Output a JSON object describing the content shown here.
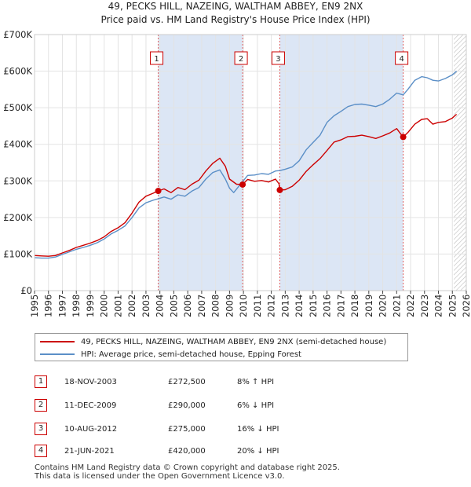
{
  "title_line1": "49, PECKS HILL, NAZEING, WALTHAM ABBEY, EN9 2NX",
  "title_line2": "Price paid vs. HM Land Registry's House Price Index (HPI)",
  "chart_data": {
    "type": "line",
    "ylim": [
      0,
      700000
    ],
    "xlim": [
      1995,
      2026
    ],
    "y_ticks": [
      {
        "value": 0,
        "label": "£0"
      },
      {
        "value": 100000,
        "label": "£100K"
      },
      {
        "value": 200000,
        "label": "£200K"
      },
      {
        "value": 300000,
        "label": "£300K"
      },
      {
        "value": 400000,
        "label": "£400K"
      },
      {
        "value": 500000,
        "label": "£500K"
      },
      {
        "value": 600000,
        "label": "£600K"
      },
      {
        "value": 700000,
        "label": "£700K"
      }
    ],
    "x_ticks": [
      "1995",
      "1996",
      "1997",
      "1998",
      "1999",
      "2000",
      "2001",
      "2002",
      "2003",
      "2004",
      "2005",
      "2006",
      "2007",
      "2008",
      "2009",
      "2010",
      "2011",
      "2012",
      "2013",
      "2014",
      "2015",
      "2016",
      "2017",
      "2018",
      "2019",
      "2020",
      "2021",
      "2022",
      "2023",
      "2024",
      "2025",
      "2026"
    ],
    "shaded_ranges": [
      [
        2003.88,
        2009.94
      ],
      [
        2012.61,
        2021.47
      ]
    ],
    "future_hatch_from": 2025.1,
    "colors": {
      "price_paid": "#cc0000",
      "hpi": "#5b8fc7",
      "shade": "#dce6f5",
      "vline": "#e06060"
    },
    "series": [
      {
        "name": "49, PECKS HILL, NAZEING, WALTHAM ABBEY, EN9 2NX (semi-detached house)",
        "color": "#cc0000",
        "points": [
          [
            1995.0,
            96000
          ],
          [
            1995.5,
            95000
          ],
          [
            1996.0,
            94000
          ],
          [
            1996.5,
            96000
          ],
          [
            1997.0,
            103000
          ],
          [
            1997.5,
            110000
          ],
          [
            1998.0,
            118000
          ],
          [
            1998.5,
            124000
          ],
          [
            1999.0,
            130000
          ],
          [
            1999.5,
            137000
          ],
          [
            2000.0,
            147000
          ],
          [
            2000.5,
            162000
          ],
          [
            2001.0,
            172000
          ],
          [
            2001.5,
            186000
          ],
          [
            2002.0,
            212000
          ],
          [
            2002.5,
            242000
          ],
          [
            2003.0,
            258000
          ],
          [
            2003.5,
            266000
          ],
          [
            2003.88,
            272500
          ],
          [
            2004.3,
            278000
          ],
          [
            2004.8,
            268000
          ],
          [
            2005.3,
            282000
          ],
          [
            2005.8,
            276000
          ],
          [
            2006.3,
            291000
          ],
          [
            2006.8,
            302000
          ],
          [
            2007.3,
            327000
          ],
          [
            2007.8,
            348000
          ],
          [
            2008.3,
            362000
          ],
          [
            2008.7,
            340000
          ],
          [
            2009.0,
            305000
          ],
          [
            2009.5,
            291000
          ],
          [
            2009.94,
            290000
          ],
          [
            2010.3,
            304000
          ],
          [
            2010.8,
            299000
          ],
          [
            2011.3,
            301000
          ],
          [
            2011.8,
            297000
          ],
          [
            2012.3,
            305000
          ],
          [
            2012.55,
            292000
          ],
          [
            2012.61,
            275000
          ],
          [
            2013.0,
            276000
          ],
          [
            2013.5,
            285000
          ],
          [
            2014.0,
            302000
          ],
          [
            2014.5,
            326000
          ],
          [
            2015.0,
            344000
          ],
          [
            2015.5,
            361000
          ],
          [
            2016.0,
            383000
          ],
          [
            2016.5,
            406000
          ],
          [
            2017.0,
            412000
          ],
          [
            2017.5,
            421000
          ],
          [
            2018.0,
            422000
          ],
          [
            2018.5,
            425000
          ],
          [
            2019.0,
            421000
          ],
          [
            2019.5,
            416000
          ],
          [
            2020.0,
            423000
          ],
          [
            2020.5,
            431000
          ],
          [
            2021.0,
            443000
          ],
          [
            2021.3,
            428000
          ],
          [
            2021.47,
            420000
          ],
          [
            2021.8,
            432000
          ],
          [
            2022.3,
            455000
          ],
          [
            2022.8,
            468000
          ],
          [
            2023.2,
            470000
          ],
          [
            2023.6,
            455000
          ],
          [
            2024.0,
            460000
          ],
          [
            2024.5,
            462000
          ],
          [
            2025.0,
            472000
          ],
          [
            2025.3,
            482000
          ]
        ]
      },
      {
        "name": "HPI: Average price, semi-detached house, Epping Forest",
        "color": "#5b8fc7",
        "points": [
          [
            1995.0,
            90000
          ],
          [
            1995.5,
            89000
          ],
          [
            1996.0,
            89000
          ],
          [
            1996.5,
            92000
          ],
          [
            1997.0,
            99000
          ],
          [
            1997.5,
            106000
          ],
          [
            1998.0,
            113000
          ],
          [
            1998.5,
            118000
          ],
          [
            1999.0,
            124000
          ],
          [
            1999.5,
            131000
          ],
          [
            2000.0,
            141000
          ],
          [
            2000.5,
            155000
          ],
          [
            2001.0,
            165000
          ],
          [
            2001.5,
            177000
          ],
          [
            2002.0,
            200000
          ],
          [
            2002.5,
            226000
          ],
          [
            2003.0,
            240000
          ],
          [
            2003.5,
            247000
          ],
          [
            2003.88,
            251000
          ],
          [
            2004.3,
            256000
          ],
          [
            2004.8,
            250000
          ],
          [
            2005.3,
            262000
          ],
          [
            2005.8,
            258000
          ],
          [
            2006.3,
            272000
          ],
          [
            2006.8,
            282000
          ],
          [
            2007.3,
            305000
          ],
          [
            2007.8,
            323000
          ],
          [
            2008.3,
            330000
          ],
          [
            2008.7,
            305000
          ],
          [
            2009.0,
            280000
          ],
          [
            2009.3,
            268000
          ],
          [
            2009.94,
            298000
          ],
          [
            2010.3,
            315000
          ],
          [
            2010.8,
            316000
          ],
          [
            2011.3,
            320000
          ],
          [
            2011.8,
            318000
          ],
          [
            2012.3,
            327000
          ],
          [
            2012.61,
            328000
          ],
          [
            2013.0,
            332000
          ],
          [
            2013.5,
            338000
          ],
          [
            2014.0,
            355000
          ],
          [
            2014.5,
            385000
          ],
          [
            2015.0,
            405000
          ],
          [
            2015.5,
            425000
          ],
          [
            2016.0,
            460000
          ],
          [
            2016.5,
            478000
          ],
          [
            2017.0,
            490000
          ],
          [
            2017.5,
            503000
          ],
          [
            2018.0,
            509000
          ],
          [
            2018.5,
            510000
          ],
          [
            2019.0,
            507000
          ],
          [
            2019.5,
            503000
          ],
          [
            2020.0,
            510000
          ],
          [
            2020.5,
            523000
          ],
          [
            2021.0,
            540000
          ],
          [
            2021.47,
            535000
          ],
          [
            2021.8,
            550000
          ],
          [
            2022.3,
            575000
          ],
          [
            2022.8,
            585000
          ],
          [
            2023.2,
            582000
          ],
          [
            2023.6,
            575000
          ],
          [
            2024.0,
            573000
          ],
          [
            2024.5,
            580000
          ],
          [
            2025.0,
            590000
          ],
          [
            2025.3,
            600000
          ]
        ]
      }
    ],
    "sales": [
      {
        "num": "1",
        "x": 2003.88,
        "y": 272500
      },
      {
        "num": "2",
        "x": 2009.94,
        "y": 290000
      },
      {
        "num": "3",
        "x": 2012.61,
        "y": 275000
      },
      {
        "num": "4",
        "x": 2021.47,
        "y": 420000
      }
    ]
  },
  "legend": {
    "price_label": "49, PECKS HILL, NAZEING, WALTHAM ABBEY, EN9 2NX (semi-detached house)",
    "hpi_label": "HPI: Average price, semi-detached house, Epping Forest"
  },
  "table": [
    {
      "num": "1",
      "date": "18-NOV-2003",
      "price": "£272,500",
      "hpi": "8% ↑ HPI"
    },
    {
      "num": "2",
      "date": "11-DEC-2009",
      "price": "£290,000",
      "hpi": "6% ↓ HPI"
    },
    {
      "num": "3",
      "date": "10-AUG-2012",
      "price": "£275,000",
      "hpi": "16% ↓ HPI"
    },
    {
      "num": "4",
      "date": "21-JUN-2021",
      "price": "£420,000",
      "hpi": "20% ↓ HPI"
    }
  ],
  "footer_line1": "Contains HM Land Registry data © Crown copyright and database right 2025.",
  "footer_line2": "This data is licensed under the Open Government Licence v3.0."
}
